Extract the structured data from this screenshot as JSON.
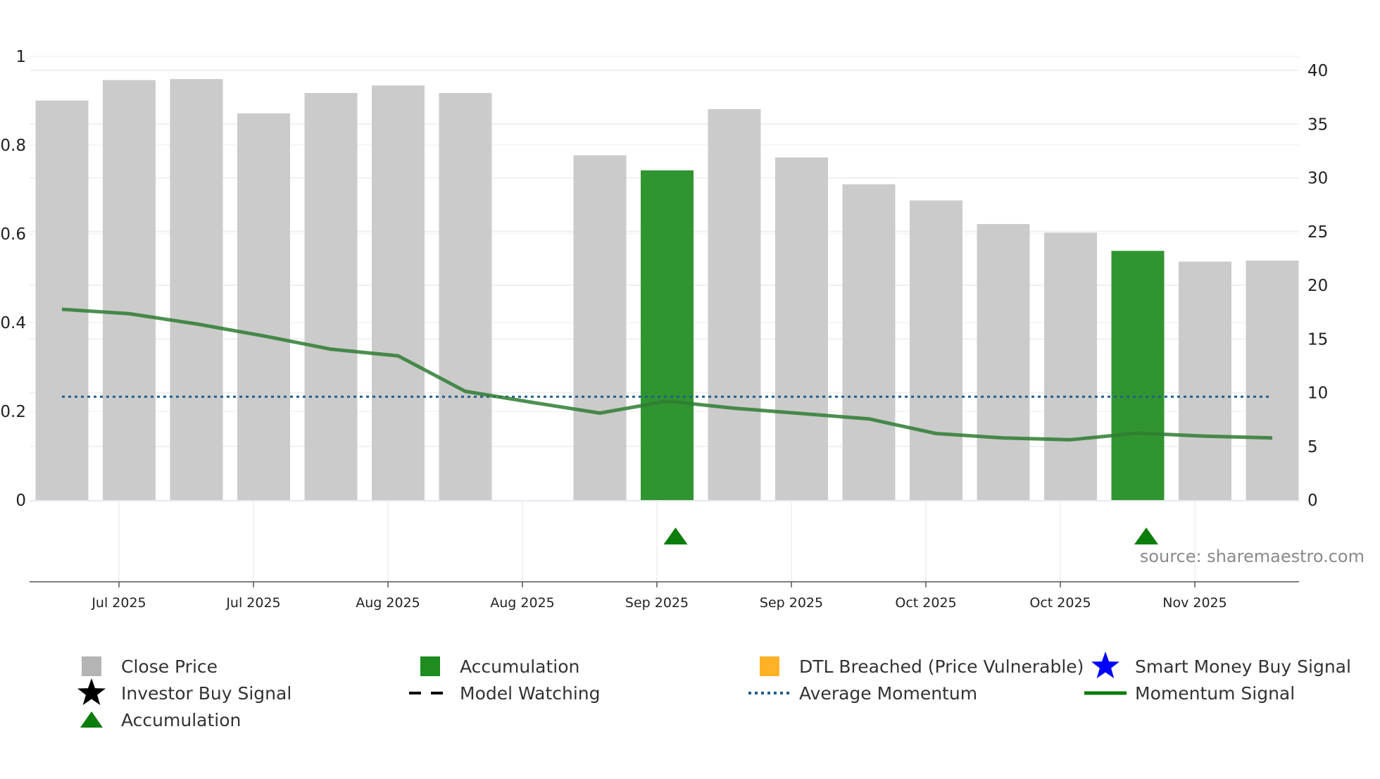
{
  "chart_data": {
    "type": "bar",
    "source": "source: sharemaestro.com",
    "left_axis": {
      "ylim": [
        0,
        1
      ],
      "ticks": [
        0,
        0.2,
        0.4,
        0.6,
        0.8,
        1
      ],
      "tick_labels": [
        "0",
        "0.2",
        "0.4",
        "0.6",
        "0.8",
        "1"
      ]
    },
    "right_axis": {
      "ylim": [
        0,
        40
      ],
      "ticks": [
        0,
        5,
        10,
        15,
        20,
        25,
        30,
        35,
        40
      ],
      "tick_labels": [
        "0",
        "5",
        "10",
        "15",
        "20",
        "25",
        "30",
        "35",
        "40"
      ]
    },
    "x_tick_labels": [
      "Jul 2025",
      "Jul 2025",
      "Aug 2025",
      "Aug 2025",
      "Sep 2025",
      "Sep 2025",
      "Oct 2025",
      "Oct 2025",
      "Nov 2025"
    ],
    "bars": [
      {
        "index": 0,
        "close": 37.2,
        "type": "Close Price"
      },
      {
        "index": 1,
        "close": 39.1,
        "type": "Close Price"
      },
      {
        "index": 2,
        "close": 39.2,
        "type": "Close Price"
      },
      {
        "index": 3,
        "close": 36.0,
        "type": "Close Price"
      },
      {
        "index": 4,
        "close": 37.9,
        "type": "Close Price"
      },
      {
        "index": 5,
        "close": 38.6,
        "type": "Close Price"
      },
      {
        "index": 6,
        "close": 37.9,
        "type": "Close Price"
      },
      {
        "index": 8,
        "close": 32.1,
        "type": "Close Price"
      },
      {
        "index": 9,
        "close": 30.7,
        "type": "Accumulation"
      },
      {
        "index": 10,
        "close": 36.4,
        "type": "Close Price"
      },
      {
        "index": 11,
        "close": 31.9,
        "type": "Close Price"
      },
      {
        "index": 12,
        "close": 29.4,
        "type": "Close Price"
      },
      {
        "index": 13,
        "close": 27.9,
        "type": "Close Price"
      },
      {
        "index": 14,
        "close": 25.7,
        "type": "Close Price"
      },
      {
        "index": 15,
        "close": 24.9,
        "type": "Close Price"
      },
      {
        "index": 16,
        "close": 23.2,
        "type": "Accumulation"
      },
      {
        "index": 17,
        "close": 22.2,
        "type": "Close Price"
      },
      {
        "index": 18,
        "close": 22.3,
        "type": "Close Price"
      }
    ],
    "momentum_signal": [
      [
        0,
        0.43
      ],
      [
        1,
        0.42
      ],
      [
        2,
        0.397
      ],
      [
        3,
        0.37
      ],
      [
        4,
        0.34
      ],
      [
        5,
        0.325
      ],
      [
        6,
        0.245
      ],
      [
        7,
        0.22
      ],
      [
        8,
        0.196
      ],
      [
        9,
        0.223
      ],
      [
        10,
        0.207
      ],
      [
        11,
        0.195
      ],
      [
        12,
        0.183
      ],
      [
        13,
        0.15
      ],
      [
        14,
        0.14
      ],
      [
        15,
        0.136
      ],
      [
        16,
        0.151
      ],
      [
        17,
        0.144
      ],
      [
        18,
        0.14
      ]
    ],
    "average_momentum": 0.233,
    "accumulation_markers": [
      9,
      16
    ],
    "colors": {
      "close_price": "#c8c8c8",
      "accumulation": "#1e8c1e",
      "dtl_breached": "#ffa500",
      "smart_money": "#0000ff",
      "investor_buy": "#000000",
      "momentum": "#2e7d32",
      "average_momentum": "#1f5f8b",
      "triangle": "#0a7d0a"
    },
    "legend": [
      {
        "label": "Close Price",
        "symbol": "gray-square"
      },
      {
        "label": "Accumulation",
        "symbol": "green-square"
      },
      {
        "label": "DTL Breached (Price Vulnerable)",
        "symbol": "orange-square"
      },
      {
        "label": "Smart Money Buy Signal",
        "symbol": "blue-star"
      },
      {
        "label": "Investor Buy Signal",
        "symbol": "black-star"
      },
      {
        "label": "Model Watching",
        "symbol": "black-dash"
      },
      {
        "label": "Average Momentum",
        "symbol": "blue-dotted"
      },
      {
        "label": "Momentum Signal",
        "symbol": "green-line"
      },
      {
        "label": "Accumulation",
        "symbol": "green-triangle"
      }
    ]
  }
}
